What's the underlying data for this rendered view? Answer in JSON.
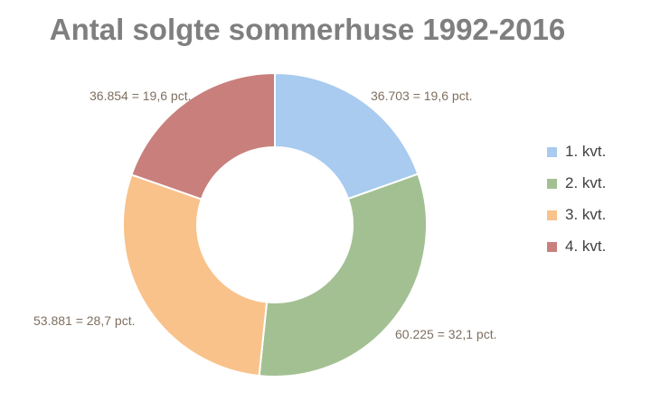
{
  "chart_data": {
    "type": "pie",
    "subtype": "donut",
    "title": "Antal solgte sommerhuse 1992-2016",
    "categories": [
      "1. kvt.",
      "2. kvt.",
      "3. kvt.",
      "4. kvt."
    ],
    "values": [
      36703,
      60225,
      53881,
      36854
    ],
    "labels": [
      "36.703 = 19,6 pct.",
      "60.225 = 32,1 pct.",
      "53.881 = 28,7 pct.",
      "36.854 = 19,6 pct."
    ],
    "colors": [
      "#a8cbef",
      "#a3c093",
      "#f9c28b",
      "#c97f7c"
    ],
    "legend": "right"
  }
}
